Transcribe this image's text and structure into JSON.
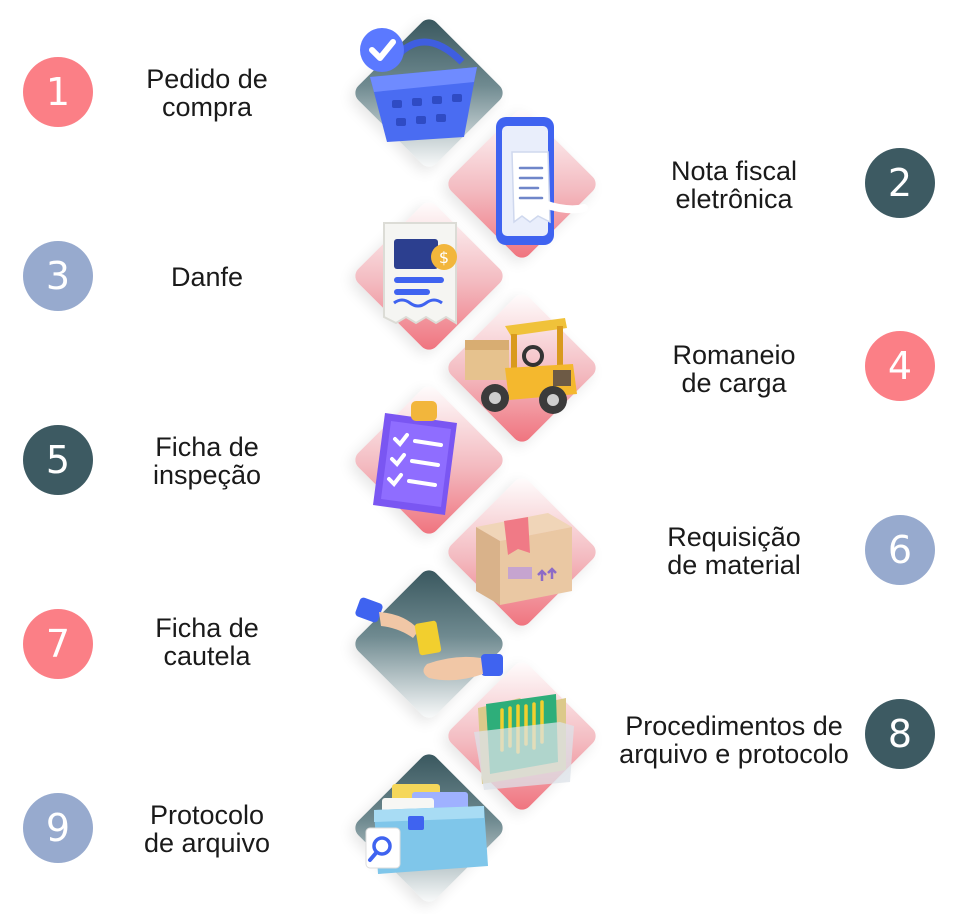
{
  "colors": {
    "pink": "#fb7f86",
    "dark": "#3d5a62",
    "blue": "#97aace"
  },
  "steps": [
    {
      "number": "1",
      "label": "Pedido de\ncompra",
      "icon": "shopping-basket-icon"
    },
    {
      "number": "2",
      "label": "Nota fiscal\neletrônica",
      "icon": "smartphone-receipt-icon"
    },
    {
      "number": "3",
      "label": "Danfe",
      "icon": "invoice-document-icon"
    },
    {
      "number": "4",
      "label": "Romaneio\nde carga",
      "icon": "forklift-icon"
    },
    {
      "number": "5",
      "label": "Ficha de\ninspeção",
      "icon": "clipboard-checklist-icon"
    },
    {
      "number": "6",
      "label": "Requisição\nde material",
      "icon": "cardboard-box-icon"
    },
    {
      "number": "7",
      "label": "Ficha de\ncautela",
      "icon": "hands-exchange-card-icon"
    },
    {
      "number": "8",
      "label": "Procedimentos de\narquivo e protocolo",
      "icon": "folder-documents-icon"
    },
    {
      "number": "9",
      "label": "Protocolo\nde arquivo",
      "icon": "file-drawer-search-icon"
    }
  ]
}
